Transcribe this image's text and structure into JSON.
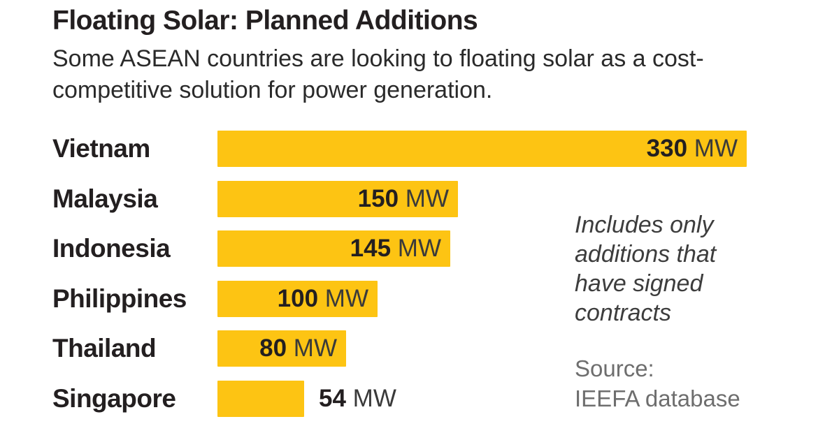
{
  "header": {
    "title": "Floating Solar: Planned Additions",
    "subtitle": "Some ASEAN countries are looking to floating solar as a cost-competitive solution for power generation."
  },
  "note": "Includes only additions that have signed contracts",
  "source": {
    "prefix": "Source:",
    "name": "IEEFA database"
  },
  "chart_data": {
    "type": "bar",
    "orientation": "horizontal",
    "title": "Floating Solar: Planned Additions",
    "categories": [
      "Vietnam",
      "Malaysia",
      "Indonesia",
      "Philippines",
      "Thailand",
      "Singapore"
    ],
    "values": [
      330,
      150,
      145,
      100,
      80,
      54
    ],
    "unit": "MW",
    "xlim": [
      0,
      330
    ],
    "bar_color": "#FDC413",
    "value_label_placement": [
      "inside",
      "inside",
      "inside",
      "inside",
      "inside",
      "outside"
    ],
    "legend": "none",
    "grid": false,
    "annotation": "Includes only additions that have signed contracts",
    "source_text": "Source: IEEFA database"
  }
}
